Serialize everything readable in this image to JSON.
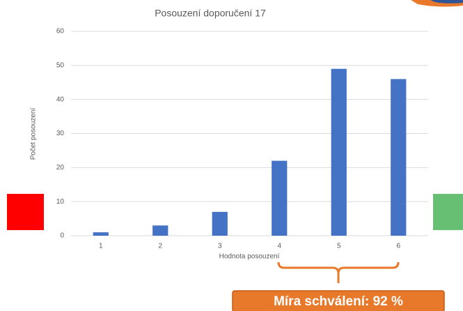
{
  "chart_data": {
    "type": "bar",
    "title": "Posouzení doporučení 17",
    "x_label": "Hodnota posouzení",
    "y_label": "Počet posouzení",
    "categories": [
      "1",
      "2",
      "3",
      "4",
      "5",
      "6"
    ],
    "values": [
      1,
      3,
      7,
      22,
      49,
      46
    ],
    "color": "#4472c4",
    "ylim": [
      0,
      60
    ],
    "yticks": [
      0,
      10,
      20,
      30,
      40,
      50,
      60
    ],
    "grid": true,
    "annotation": "Míra schválení: 92 %"
  }
}
